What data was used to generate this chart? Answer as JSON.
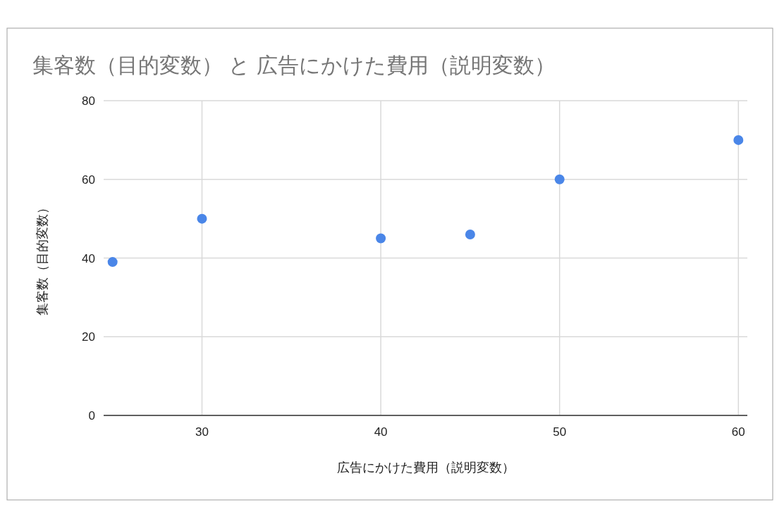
{
  "chart_data": {
    "type": "scatter",
    "title": "集客数（目的変数） と 広告にかけた費用（説明変数）",
    "xlabel": "広告にかけた費用（説明変数）",
    "ylabel": "集客数（目的変数）",
    "x": [
      25,
      30,
      40,
      45,
      50,
      60
    ],
    "series": [
      {
        "color": "#4a86e8",
        "values": [
          39,
          50,
          45,
          46,
          60,
          70
        ]
      }
    ],
    "xlim": [
      24.5,
      60.5
    ],
    "xticks": [
      30,
      40,
      50,
      60
    ],
    "ylim": [
      0,
      80
    ],
    "yticks": [
      0,
      20,
      40,
      60,
      80
    ],
    "grid": true,
    "marker": "circle"
  }
}
